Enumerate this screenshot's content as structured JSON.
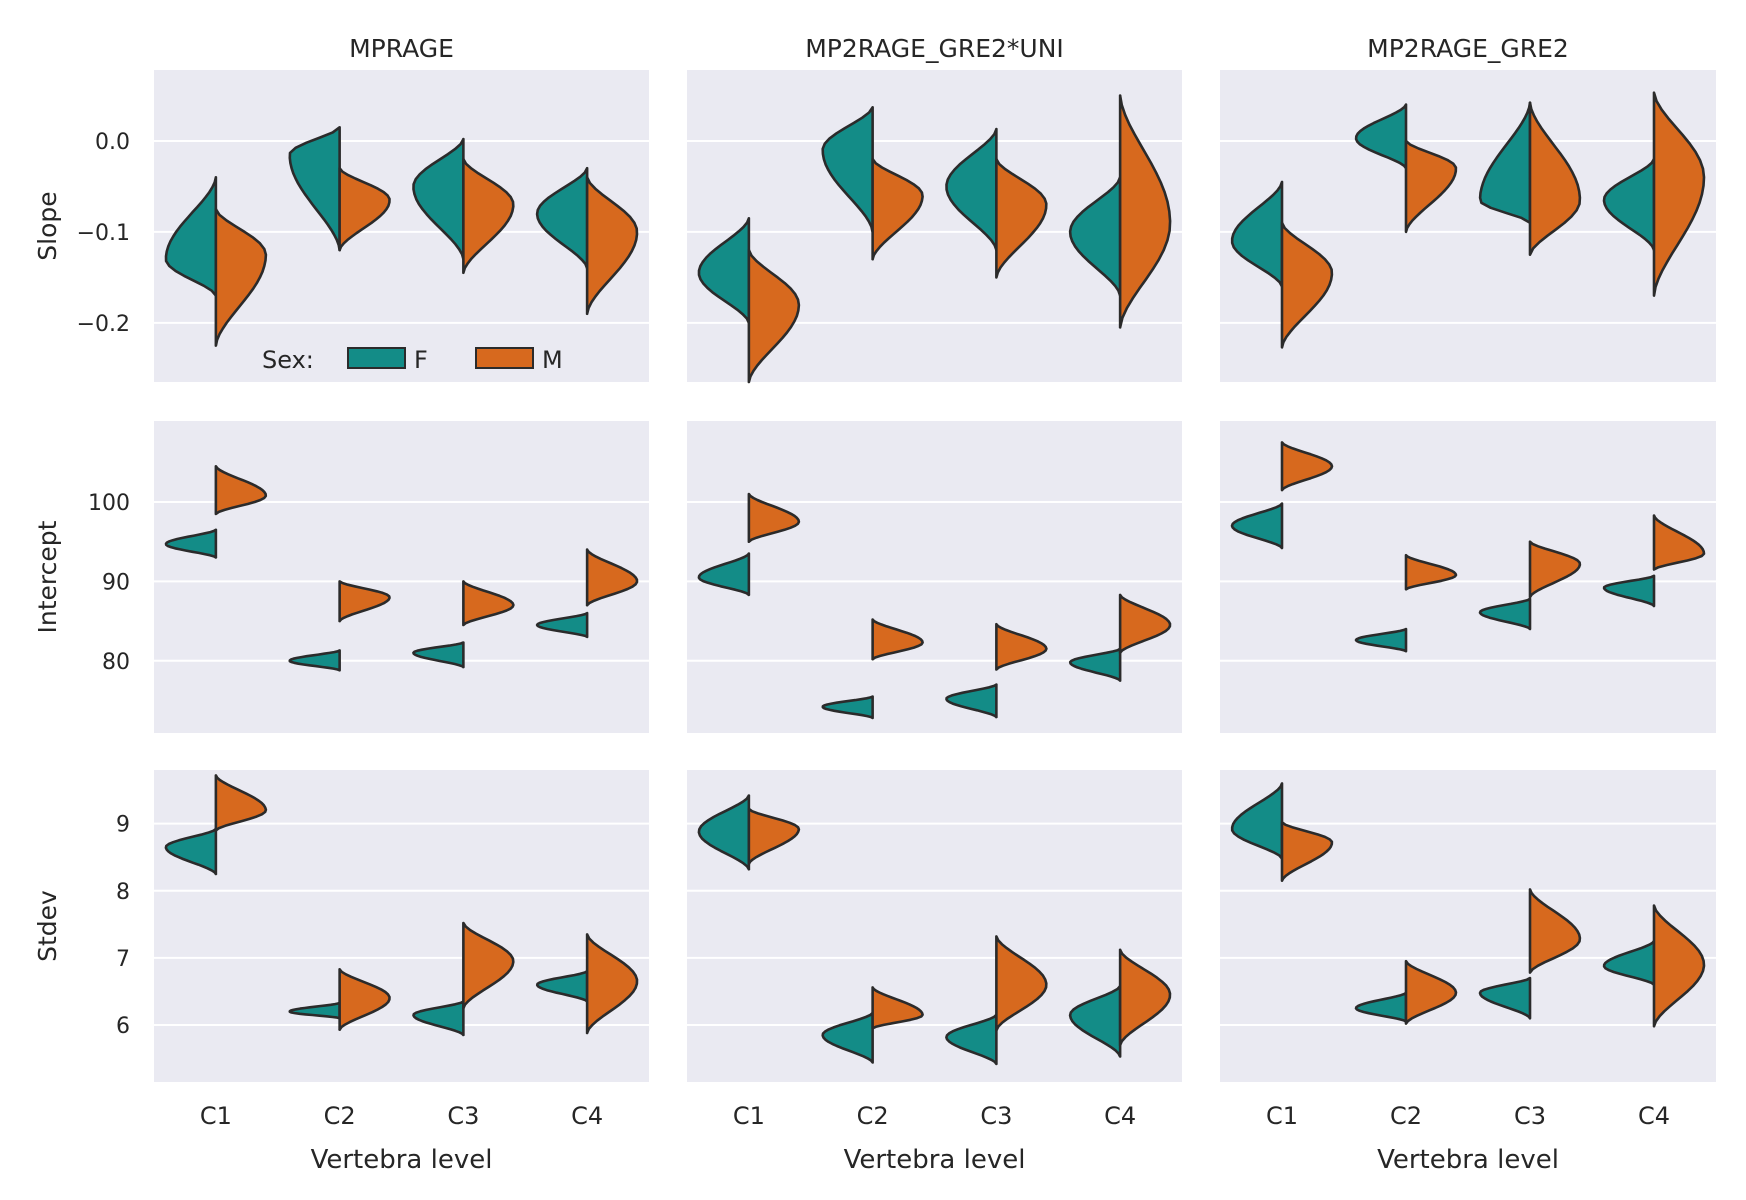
{
  "chart_data": {
    "type": "split-violin",
    "columns": [
      "MPRAGE",
      "MP2RAGE_GRE2*UNI",
      "MP2RAGE_GRE2"
    ],
    "rows": [
      {
        "metric": "Slope",
        "ylim": [
          -0.265,
          0.078
        ],
        "ticks": [
          0.0,
          -0.1,
          -0.2
        ],
        "tick_labels": [
          "0.0",
          "−0.1",
          "−0.2"
        ]
      },
      {
        "metric": "Intercept",
        "ylim": [
          70.9,
          110.2
        ],
        "ticks": [
          100,
          90,
          80
        ],
        "tick_labels": [
          "100",
          "90",
          "80"
        ]
      },
      {
        "metric": "Stdev",
        "ylim": [
          5.15,
          9.8
        ],
        "ticks": [
          9,
          8,
          7,
          6
        ],
        "tick_labels": [
          "9",
          "8",
          "7",
          "6"
        ]
      }
    ],
    "categories": [
      "C1",
      "C2",
      "C3",
      "C4"
    ],
    "xlabel": "Vertebra level",
    "legend": {
      "title": "Sex:",
      "entries": [
        "F",
        "M"
      ],
      "colors": [
        "#138c87",
        "#d7691e"
      ],
      "placement": "lower-center of top-left panel"
    },
    "series_note": "Each violin half gives [min, mode, max] of the distribution per sex; F drawn left of centre, M right.",
    "panels": {
      "Slope": {
        "MPRAGE": {
          "F": [
            [
              -0.17,
              -0.13,
              -0.04
            ],
            [
              -0.12,
              -0.015,
              0.015
            ],
            [
              -0.13,
              -0.05,
              0.002
            ],
            [
              -0.14,
              -0.08,
              -0.03
            ]
          ],
          "M": [
            [
              -0.225,
              -0.125,
              -0.075
            ],
            [
              -0.12,
              -0.065,
              -0.03
            ],
            [
              -0.145,
              -0.07,
              -0.02
            ],
            [
              -0.19,
              -0.1,
              -0.04
            ]
          ]
        },
        "MP2RAGE_GRE2*UNI": {
          "F": [
            [
              -0.2,
              -0.145,
              -0.085
            ],
            [
              -0.1,
              -0.01,
              0.037
            ],
            [
              -0.12,
              -0.05,
              0.013
            ],
            [
              -0.17,
              -0.1,
              -0.04
            ]
          ],
          "M": [
            [
              -0.265,
              -0.18,
              -0.12
            ],
            [
              -0.13,
              -0.06,
              -0.02
            ],
            [
              -0.15,
              -0.07,
              -0.02
            ],
            [
              -0.205,
              -0.09,
              0.05
            ]
          ]
        },
        "MP2RAGE_GRE2": {
          "F": [
            [
              -0.16,
              -0.11,
              -0.045
            ],
            [
              -0.03,
              0.003,
              0.04
            ],
            [
              -0.09,
              -0.065,
              0.042
            ],
            [
              -0.12,
              -0.065,
              -0.02
            ]
          ],
          "M": [
            [
              -0.227,
              -0.145,
              -0.09
            ],
            [
              -0.1,
              -0.03,
              0.0
            ],
            [
              -0.125,
              -0.065,
              0.042
            ],
            [
              -0.17,
              -0.04,
              0.053
            ]
          ]
        }
      },
      "Intercept": {
        "MPRAGE": {
          "F": [
            [
              93.0,
              94.7,
              96.5
            ],
            [
              78.8,
              80.0,
              81.3
            ],
            [
              79.2,
              81.0,
              82.3
            ],
            [
              83.0,
              84.5,
              86.0
            ]
          ],
          "M": [
            [
              98.5,
              100.8,
              104.5
            ],
            [
              85.0,
              88.0,
              90.0
            ],
            [
              84.5,
              87.0,
              90.0
            ],
            [
              87.0,
              90.0,
              94.0
            ]
          ]
        },
        "MP2RAGE_GRE2*UNI": {
          "F": [
            [
              88.3,
              90.5,
              93.5
            ],
            [
              72.8,
              74.2,
              75.5
            ],
            [
              72.9,
              75.2,
              77.0
            ],
            [
              77.5,
              79.8,
              81.5
            ]
          ],
          "M": [
            [
              95.0,
              97.5,
              101.0
            ],
            [
              80.2,
              82.3,
              85.2
            ],
            [
              78.9,
              81.5,
              84.6
            ],
            [
              81.0,
              84.5,
              88.3
            ]
          ]
        },
        "MP2RAGE_GRE2": {
          "F": [
            [
              94.2,
              97.0,
              99.8
            ],
            [
              81.2,
              82.6,
              84.0
            ],
            [
              84.0,
              86.1,
              87.8
            ],
            [
              86.9,
              89.2,
              90.7
            ]
          ],
          "M": [
            [
              101.5,
              104.5,
              107.5
            ],
            [
              89.0,
              90.8,
              93.3
            ],
            [
              88.0,
              92.2,
              95.0
            ],
            [
              91.5,
              93.5,
              98.3
            ]
          ]
        }
      },
      "Stdev": {
        "MPRAGE": {
          "F": [
            [
              8.25,
              8.65,
              8.92
            ],
            [
              6.1,
              6.2,
              6.33
            ],
            [
              5.85,
              6.15,
              6.35
            ],
            [
              6.35,
              6.6,
              6.8
            ]
          ],
          "M": [
            [
              8.9,
              9.2,
              9.72
            ],
            [
              5.93,
              6.4,
              6.83
            ],
            [
              6.25,
              6.95,
              7.52
            ],
            [
              5.88,
              6.65,
              7.35
            ]
          ]
        },
        "MP2RAGE_GRE2*UNI": {
          "F": [
            [
              8.32,
              8.88,
              9.42
            ],
            [
              5.44,
              5.85,
              6.18
            ],
            [
              5.42,
              5.82,
              6.15
            ],
            [
              5.53,
              6.15,
              6.58
            ]
          ],
          "M": [
            [
              8.4,
              8.92,
              9.22
            ],
            [
              5.95,
              6.15,
              6.56
            ],
            [
              5.92,
              6.6,
              7.32
            ],
            [
              5.7,
              6.45,
              7.12
            ]
          ]
        },
        "MP2RAGE_GRE2": {
          "F": [
            [
              8.48,
              8.92,
              9.6
            ],
            [
              6.05,
              6.25,
              6.48
            ],
            [
              6.1,
              6.48,
              6.7
            ],
            [
              6.6,
              6.88,
              7.25
            ]
          ],
          "M": [
            [
              8.15,
              8.72,
              9.02
            ],
            [
              6.02,
              6.48,
              6.95
            ],
            [
              6.78,
              7.28,
              8.02
            ],
            [
              5.98,
              6.9,
              7.78
            ]
          ]
        }
      }
    }
  }
}
